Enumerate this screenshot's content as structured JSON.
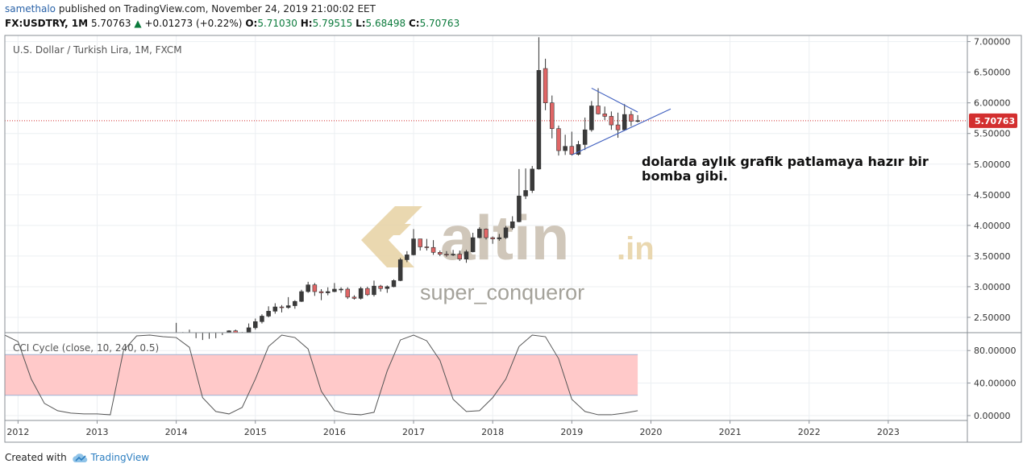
{
  "header": {
    "author": "samethalo",
    "published": "published on TradingView.com, November 24, 2019 21:00:02 EET",
    "symbol": "FX:USDTRY, 1M",
    "last": "5.70763",
    "change_arrow": "▲",
    "change": "+0.01273 (+0.22%)",
    "o_label": "O:",
    "o_value": "5.71030",
    "h_label": "H:",
    "h_value": "5.79515",
    "l_label": "L:",
    "l_value": "5.68498",
    "c_label": "C:",
    "c_value": "5.70763"
  },
  "footer": {
    "created_with": "Created with",
    "brand": "TradingView",
    "logo_icon": "tradingview-cloud-icon"
  },
  "colors": {
    "up": "#3a3a3a",
    "down": "#e06666",
    "price_line": "#d32f2f",
    "trendline": "#3f5fbf",
    "cci_band": "#ffc9c9",
    "grid": "#eceff2",
    "watermark": "#cbc2b3",
    "watermark_logo": "#e8d4a8"
  },
  "watermark": {
    "brand": "altin",
    "tld": ".in",
    "user": "super_conqueror",
    "logo_icon": "altin-logo-icon"
  },
  "chart_data": [
    {
      "type": "candlestick",
      "title": "U.S. Dollar / Turkish Lira, 1M, FXCM",
      "y_ticks": [
        "2.50000",
        "3.00000",
        "3.50000",
        "4.00000",
        "4.50000",
        "5.00000",
        "5.50000",
        "6.00000",
        "6.50000",
        "7.00000"
      ],
      "x_ticks": [
        "2012",
        "2013",
        "2014",
        "2015",
        "2016",
        "2017",
        "2018",
        "2019",
        "2020",
        "2021",
        "2022",
        "2023"
      ],
      "ylim": [
        2.25,
        7.1
      ],
      "xlim": [
        "2011-11",
        "2024-01"
      ],
      "last_price": 5.70763,
      "last_price_label": "5.70763",
      "annotation": "dolarda aylık grafik patlamaya hazır bir bomba gibi.",
      "triangle_upper": [
        [
          "2019-04",
          6.24
        ],
        [
          "2019-11",
          5.85
        ]
      ],
      "triangle_lower": [
        [
          "2019-01",
          5.15
        ],
        [
          "2020-04",
          5.9
        ]
      ],
      "candles": [
        {
          "t": "2014-01",
          "o": 2.15,
          "h": 2.41,
          "l": 2.12,
          "c": 2.22
        },
        {
          "t": "2014-02",
          "o": 2.22,
          "h": 2.26,
          "l": 2.17,
          "c": 2.21
        },
        {
          "t": "2014-03",
          "o": 2.21,
          "h": 2.3,
          "l": 2.12,
          "c": 2.14
        },
        {
          "t": "2014-04",
          "o": 2.14,
          "h": 2.16,
          "l": 2.09,
          "c": 2.11
        },
        {
          "t": "2014-05",
          "o": 2.11,
          "h": 2.13,
          "l": 2.06,
          "c": 2.09
        },
        {
          "t": "2014-06",
          "o": 2.09,
          "h": 2.15,
          "l": 2.07,
          "c": 2.12
        },
        {
          "t": "2014-07",
          "o": 2.12,
          "h": 2.16,
          "l": 2.09,
          "c": 2.14
        },
        {
          "t": "2014-08",
          "o": 2.14,
          "h": 2.21,
          "l": 2.14,
          "c": 2.18
        },
        {
          "t": "2014-09",
          "o": 2.18,
          "h": 2.29,
          "l": 2.17,
          "c": 2.28
        },
        {
          "t": "2014-10",
          "o": 2.28,
          "h": 2.3,
          "l": 2.2,
          "c": 2.23
        },
        {
          "t": "2014-11",
          "o": 2.23,
          "h": 2.26,
          "l": 2.2,
          "c": 2.24
        },
        {
          "t": "2014-12",
          "o": 2.24,
          "h": 2.4,
          "l": 2.22,
          "c": 2.33
        },
        {
          "t": "2015-01",
          "o": 2.33,
          "h": 2.48,
          "l": 2.3,
          "c": 2.43
        },
        {
          "t": "2015-02",
          "o": 2.43,
          "h": 2.55,
          "l": 2.4,
          "c": 2.52
        },
        {
          "t": "2015-03",
          "o": 2.52,
          "h": 2.68,
          "l": 2.5,
          "c": 2.6
        },
        {
          "t": "2015-04",
          "o": 2.6,
          "h": 2.73,
          "l": 2.56,
          "c": 2.67
        },
        {
          "t": "2015-05",
          "o": 2.67,
          "h": 2.7,
          "l": 2.58,
          "c": 2.66
        },
        {
          "t": "2015-06",
          "o": 2.66,
          "h": 2.83,
          "l": 2.64,
          "c": 2.69
        },
        {
          "t": "2015-07",
          "o": 2.69,
          "h": 2.78,
          "l": 2.64,
          "c": 2.76
        },
        {
          "t": "2015-08",
          "o": 2.76,
          "h": 2.95,
          "l": 2.75,
          "c": 2.92
        },
        {
          "t": "2015-09",
          "o": 2.92,
          "h": 3.08,
          "l": 2.9,
          "c": 3.03
        },
        {
          "t": "2015-10",
          "o": 3.03,
          "h": 3.06,
          "l": 2.85,
          "c": 2.92
        },
        {
          "t": "2015-11",
          "o": 2.92,
          "h": 2.96,
          "l": 2.78,
          "c": 2.9
        },
        {
          "t": "2015-12",
          "o": 2.9,
          "h": 2.99,
          "l": 2.86,
          "c": 2.92
        },
        {
          "t": "2016-01",
          "o": 2.92,
          "h": 3.06,
          "l": 2.91,
          "c": 2.96
        },
        {
          "t": "2016-02",
          "o": 2.96,
          "h": 2.99,
          "l": 2.9,
          "c": 2.96
        },
        {
          "t": "2016-03",
          "o": 2.96,
          "h": 2.99,
          "l": 2.8,
          "c": 2.83
        },
        {
          "t": "2016-04",
          "o": 2.83,
          "h": 2.86,
          "l": 2.79,
          "c": 2.81
        },
        {
          "t": "2016-05",
          "o": 2.81,
          "h": 3.0,
          "l": 2.79,
          "c": 2.97
        },
        {
          "t": "2016-06",
          "o": 2.97,
          "h": 3.0,
          "l": 2.85,
          "c": 2.87
        },
        {
          "t": "2016-07",
          "o": 2.87,
          "h": 3.1,
          "l": 2.84,
          "c": 3.01
        },
        {
          "t": "2016-08",
          "o": 3.01,
          "h": 3.03,
          "l": 2.92,
          "c": 2.97
        },
        {
          "t": "2016-09",
          "o": 2.97,
          "h": 3.02,
          "l": 2.9,
          "c": 3.0
        },
        {
          "t": "2016-10",
          "o": 3.0,
          "h": 3.12,
          "l": 2.99,
          "c": 3.1
        },
        {
          "t": "2016-11",
          "o": 3.1,
          "h": 3.47,
          "l": 3.09,
          "c": 3.44
        },
        {
          "t": "2016-12",
          "o": 3.44,
          "h": 3.58,
          "l": 3.4,
          "c": 3.52
        },
        {
          "t": "2017-01",
          "o": 3.52,
          "h": 3.94,
          "l": 3.51,
          "c": 3.78
        },
        {
          "t": "2017-02",
          "o": 3.78,
          "h": 3.78,
          "l": 3.59,
          "c": 3.65
        },
        {
          "t": "2017-03",
          "o": 3.65,
          "h": 3.78,
          "l": 3.59,
          "c": 3.64
        },
        {
          "t": "2017-04",
          "o": 3.64,
          "h": 3.76,
          "l": 3.52,
          "c": 3.56
        },
        {
          "t": "2017-05",
          "o": 3.56,
          "h": 3.59,
          "l": 3.5,
          "c": 3.53
        },
        {
          "t": "2017-06",
          "o": 3.53,
          "h": 3.58,
          "l": 3.49,
          "c": 3.52
        },
        {
          "t": "2017-07",
          "o": 3.52,
          "h": 3.6,
          "l": 3.5,
          "c": 3.53
        },
        {
          "t": "2017-08",
          "o": 3.53,
          "h": 3.59,
          "l": 3.42,
          "c": 3.45
        },
        {
          "t": "2017-09",
          "o": 3.45,
          "h": 3.6,
          "l": 3.39,
          "c": 3.57
        },
        {
          "t": "2017-10",
          "o": 3.57,
          "h": 3.88,
          "l": 3.56,
          "c": 3.8
        },
        {
          "t": "2017-11",
          "o": 3.8,
          "h": 3.97,
          "l": 3.79,
          "c": 3.94
        },
        {
          "t": "2017-12",
          "o": 3.94,
          "h": 3.95,
          "l": 3.77,
          "c": 3.8
        },
        {
          "t": "2018-01",
          "o": 3.8,
          "h": 3.82,
          "l": 3.7,
          "c": 3.78
        },
        {
          "t": "2018-02",
          "o": 3.78,
          "h": 3.86,
          "l": 3.75,
          "c": 3.8
        },
        {
          "t": "2018-03",
          "o": 3.8,
          "h": 3.99,
          "l": 3.78,
          "c": 3.96
        },
        {
          "t": "2018-04",
          "o": 3.96,
          "h": 4.15,
          "l": 3.93,
          "c": 4.06
        },
        {
          "t": "2018-05",
          "o": 4.06,
          "h": 4.92,
          "l": 4.05,
          "c": 4.48
        },
        {
          "t": "2018-06",
          "o": 4.48,
          "h": 4.93,
          "l": 4.43,
          "c": 4.57
        },
        {
          "t": "2018-07",
          "o": 4.57,
          "h": 4.97,
          "l": 4.53,
          "c": 4.92
        },
        {
          "t": "2018-08",
          "o": 4.92,
          "h": 7.07,
          "l": 4.91,
          "c": 6.53
        },
        {
          "t": "2018-09",
          "o": 6.56,
          "h": 6.72,
          "l": 5.88,
          "c": 6.0
        },
        {
          "t": "2018-10",
          "o": 6.0,
          "h": 6.12,
          "l": 5.42,
          "c": 5.58
        },
        {
          "t": "2018-11",
          "o": 5.58,
          "h": 5.63,
          "l": 5.14,
          "c": 5.22
        },
        {
          "t": "2018-12",
          "o": 5.22,
          "h": 5.48,
          "l": 5.15,
          "c": 5.29
        },
        {
          "t": "2019-01",
          "o": 5.29,
          "h": 5.53,
          "l": 5.14,
          "c": 5.16
        },
        {
          "t": "2019-02",
          "o": 5.16,
          "h": 5.38,
          "l": 5.14,
          "c": 5.32
        },
        {
          "t": "2019-03",
          "o": 5.32,
          "h": 5.76,
          "l": 5.23,
          "c": 5.56
        },
        {
          "t": "2019-04",
          "o": 5.56,
          "h": 6.03,
          "l": 5.53,
          "c": 5.95
        },
        {
          "t": "2019-05",
          "o": 5.95,
          "h": 6.24,
          "l": 5.81,
          "c": 5.82
        },
        {
          "t": "2019-06",
          "o": 5.82,
          "h": 5.94,
          "l": 5.72,
          "c": 5.78
        },
        {
          "t": "2019-07",
          "o": 5.78,
          "h": 5.86,
          "l": 5.56,
          "c": 5.64
        },
        {
          "t": "2019-08",
          "o": 5.64,
          "h": 5.84,
          "l": 5.43,
          "c": 5.56
        },
        {
          "t": "2019-09",
          "o": 5.56,
          "h": 5.98,
          "l": 5.55,
          "c": 5.81
        },
        {
          "t": "2019-10",
          "o": 5.81,
          "h": 5.87,
          "l": 5.62,
          "c": 5.7
        },
        {
          "t": "2019-11",
          "o": 5.71,
          "h": 5.8,
          "l": 5.68,
          "c": 5.71
        }
      ]
    },
    {
      "type": "line",
      "title": "CCI Cycle (close, 10, 240, 0.5)",
      "y_ticks": [
        "0.00000",
        "40.00000",
        "80.00000"
      ],
      "ylim": [
        -6,
        102
      ],
      "band": [
        25,
        75
      ],
      "x": [
        "2011-11",
        "2012-01",
        "2012-03",
        "2012-05",
        "2012-07",
        "2012-09",
        "2012-11",
        "2013-01",
        "2013-03",
        "2013-05",
        "2013-07",
        "2013-09",
        "2013-11",
        "2014-01",
        "2014-03",
        "2014-05",
        "2014-07",
        "2014-09",
        "2014-11",
        "2015-01",
        "2015-03",
        "2015-05",
        "2015-07",
        "2015-09",
        "2015-11",
        "2016-01",
        "2016-03",
        "2016-05",
        "2016-07",
        "2016-09",
        "2016-11",
        "2017-01",
        "2017-03",
        "2017-05",
        "2017-07",
        "2017-09",
        "2017-11",
        "2018-01",
        "2018-03",
        "2018-05",
        "2018-07",
        "2018-09",
        "2018-11",
        "2019-01",
        "2019-03",
        "2019-05",
        "2019-07",
        "2019-09",
        "2019-11"
      ],
      "values": [
        99,
        91,
        45,
        15,
        6,
        3,
        2,
        2,
        1,
        80,
        98,
        99,
        97,
        96,
        84,
        22,
        5,
        2,
        10,
        45,
        85,
        99,
        96,
        82,
        30,
        6,
        2,
        1,
        4,
        55,
        93,
        99,
        92,
        68,
        20,
        5,
        6,
        22,
        45,
        85,
        99,
        97,
        70,
        20,
        5,
        1,
        1,
        3,
        6
      ]
    }
  ]
}
